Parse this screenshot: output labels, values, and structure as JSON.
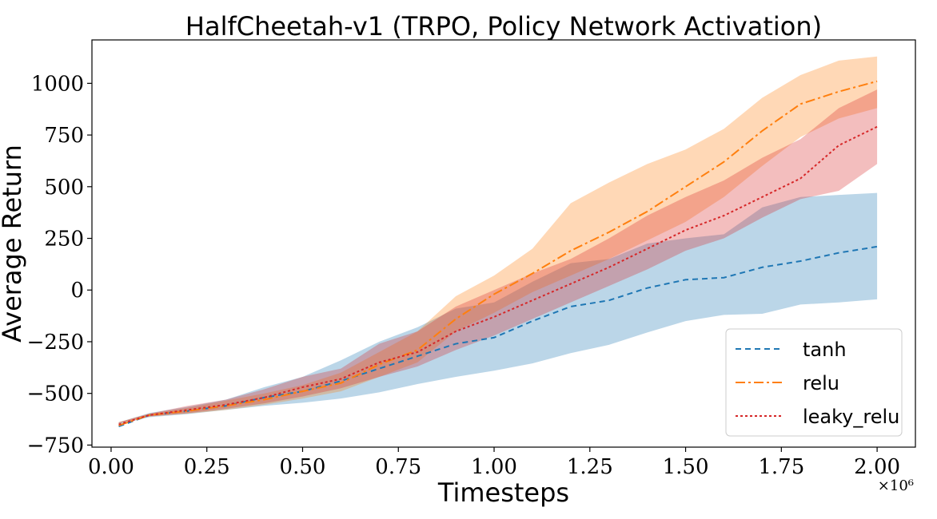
{
  "chart_data": {
    "type": "line",
    "title": "HalfCheetah-v1 (TRPO, Policy Network Activation)",
    "xlabel": "Timesteps",
    "ylabel": "Average Return",
    "x_multiplier_label": "×10⁶",
    "xlim": [
      -0.05,
      2.1
    ],
    "ylim": [
      -760,
      1210
    ],
    "x_ticks": [
      0.0,
      0.25,
      0.5,
      0.75,
      1.0,
      1.25,
      1.5,
      1.75,
      2.0
    ],
    "x_tick_labels": [
      "0.00",
      "0.25",
      "0.50",
      "0.75",
      "1.00",
      "1.25",
      "1.50",
      "1.75",
      "2.00"
    ],
    "y_ticks": [
      -750,
      -500,
      -250,
      0,
      250,
      500,
      750,
      1000
    ],
    "y_tick_labels": [
      "−750",
      "−500",
      "−250",
      "0",
      "250",
      "500",
      "750",
      "1000"
    ],
    "grid": false,
    "legend_position": "bottom-right",
    "x": [
      0.02,
      0.1,
      0.2,
      0.3,
      0.4,
      0.5,
      0.6,
      0.7,
      0.8,
      0.9,
      1.0,
      1.1,
      1.2,
      1.3,
      1.4,
      1.5,
      1.6,
      1.7,
      1.8,
      1.9,
      2.0
    ],
    "series": [
      {
        "name": "tanh",
        "color": "#1f77b4",
        "dash": "7,5",
        "values": [
          -660,
          -605,
          -585,
          -560,
          -520,
          -490,
          -440,
          -380,
          -320,
          -260,
          -230,
          -150,
          -80,
          -50,
          10,
          50,
          60,
          110,
          140,
          180,
          210
        ],
        "lower": [
          -650,
          -615,
          -600,
          -580,
          -560,
          -545,
          -525,
          -495,
          -455,
          -420,
          -390,
          -355,
          -305,
          -265,
          -205,
          -150,
          -120,
          -115,
          -70,
          -60,
          -45
        ],
        "upper": [
          -640,
          -595,
          -565,
          -530,
          -470,
          -420,
          -340,
          -250,
          -180,
          -90,
          -60,
          40,
          130,
          150,
          225,
          250,
          270,
          400,
          450,
          460,
          470
        ]
      },
      {
        "name": "relu",
        "color": "#ff7f0e",
        "dash": "12,4,3,4",
        "values": [
          -655,
          -605,
          -585,
          -560,
          -530,
          -490,
          -450,
          -360,
          -290,
          -140,
          -20,
          80,
          190,
          280,
          380,
          500,
          620,
          770,
          900,
          960,
          1010
        ],
        "lower": [
          -645,
          -612,
          -598,
          -580,
          -555,
          -525,
          -490,
          -420,
          -350,
          -200,
          -110,
          -10,
          70,
          150,
          240,
          330,
          450,
          600,
          740,
          830,
          880
        ],
        "upper": [
          -640,
          -598,
          -570,
          -535,
          -500,
          -460,
          -400,
          -300,
          -200,
          -30,
          70,
          200,
          420,
          520,
          610,
          680,
          780,
          930,
          1040,
          1110,
          1130
        ]
      },
      {
        "name": "leaky_relu",
        "color": "#d62728",
        "dash": "3,3",
        "values": [
          -650,
          -605,
          -580,
          -555,
          -520,
          -470,
          -430,
          -350,
          -300,
          -200,
          -130,
          -50,
          30,
          110,
          200,
          290,
          360,
          450,
          540,
          700,
          790
        ],
        "lower": [
          -645,
          -612,
          -596,
          -574,
          -548,
          -515,
          -475,
          -420,
          -370,
          -290,
          -220,
          -140,
          -60,
          20,
          100,
          190,
          250,
          350,
          440,
          480,
          610
        ],
        "upper": [
          -640,
          -598,
          -560,
          -530,
          -480,
          -420,
          -380,
          -260,
          -200,
          -80,
          0,
          80,
          150,
          250,
          360,
          450,
          530,
          640,
          730,
          880,
          970
        ]
      }
    ]
  }
}
